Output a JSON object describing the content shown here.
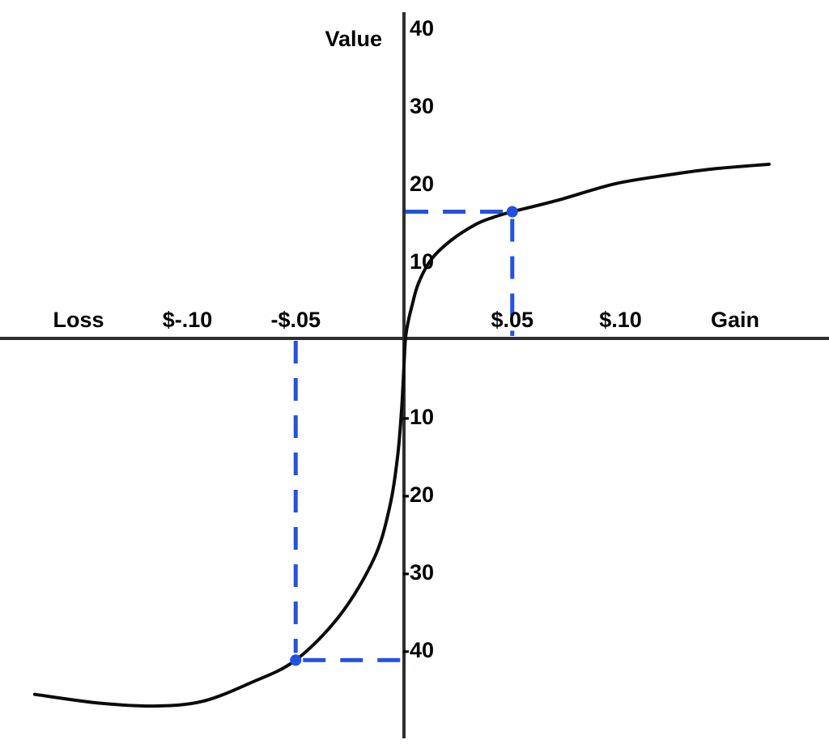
{
  "chart_data": {
    "type": "line",
    "title": "",
    "y_axis": {
      "title": "Value",
      "ticks": [
        {
          "label": "40",
          "value": 40
        },
        {
          "label": "30",
          "value": 30
        },
        {
          "label": "20",
          "value": 20
        },
        {
          "label": "10",
          "value": 10
        },
        {
          "label": "-10",
          "value": -10
        },
        {
          "label": "-20",
          "value": -20
        },
        {
          "label": "-30",
          "value": -30
        },
        {
          "label": "-40",
          "value": -40
        }
      ],
      "range": [
        -52.19,
        43.54
      ]
    },
    "x_axis": {
      "label_left": "Loss",
      "label_right": "Gain",
      "ticks": [
        {
          "label": "$-.10",
          "value": -0.1
        },
        {
          "label": "-$.05",
          "value": -0.05
        },
        {
          "label": "$.05",
          "value": 0.05
        },
        {
          "label": "$.10",
          "value": 0.1
        }
      ],
      "range": [
        -0.18654,
        0.19626
      ]
    },
    "series": [
      {
        "name": "value-function-curve",
        "color": "#0b0b0b",
        "points": [
          [
            -0.1705,
            -45.8
          ],
          [
            -0.1417,
            -46.9
          ],
          [
            -0.1155,
            -47.3
          ],
          [
            -0.0931,
            -46.7
          ],
          [
            -0.0707,
            -44.3
          ],
          [
            -0.05,
            -41.4
          ],
          [
            -0.0295,
            -35.6
          ],
          [
            -0.0138,
            -28.3
          ],
          [
            -0.0067,
            -21.8
          ],
          [
            -0.003,
            -15.3
          ],
          [
            -0.0011,
            -9.1
          ],
          [
            0.0,
            -3.5
          ],
          [
            0.0007,
            0.0
          ],
          [
            0.0019,
            2.1
          ],
          [
            0.0037,
            4.2
          ],
          [
            0.0067,
            7.1
          ],
          [
            0.0127,
            10.2
          ],
          [
            0.0217,
            12.6
          ],
          [
            0.0333,
            14.7
          ],
          [
            0.0415,
            15.6
          ],
          [
            0.05,
            16.3
          ],
          [
            0.0714,
            17.8
          ],
          [
            0.0976,
            19.9
          ],
          [
            0.1237,
            21.1
          ],
          [
            0.1424,
            21.8
          ],
          [
            0.1686,
            22.4
          ]
        ]
      }
    ],
    "highlight_points": [
      {
        "x": -0.05,
        "value": -41.4
      },
      {
        "x": 0.05,
        "value": 16.3
      }
    ],
    "guide_color": "#2551e3",
    "point_color": "#2150e6",
    "axis_color": "#2e2e2e",
    "text_color": "#000000",
    "background": "#ffffff",
    "grid": false,
    "legend": false
  }
}
